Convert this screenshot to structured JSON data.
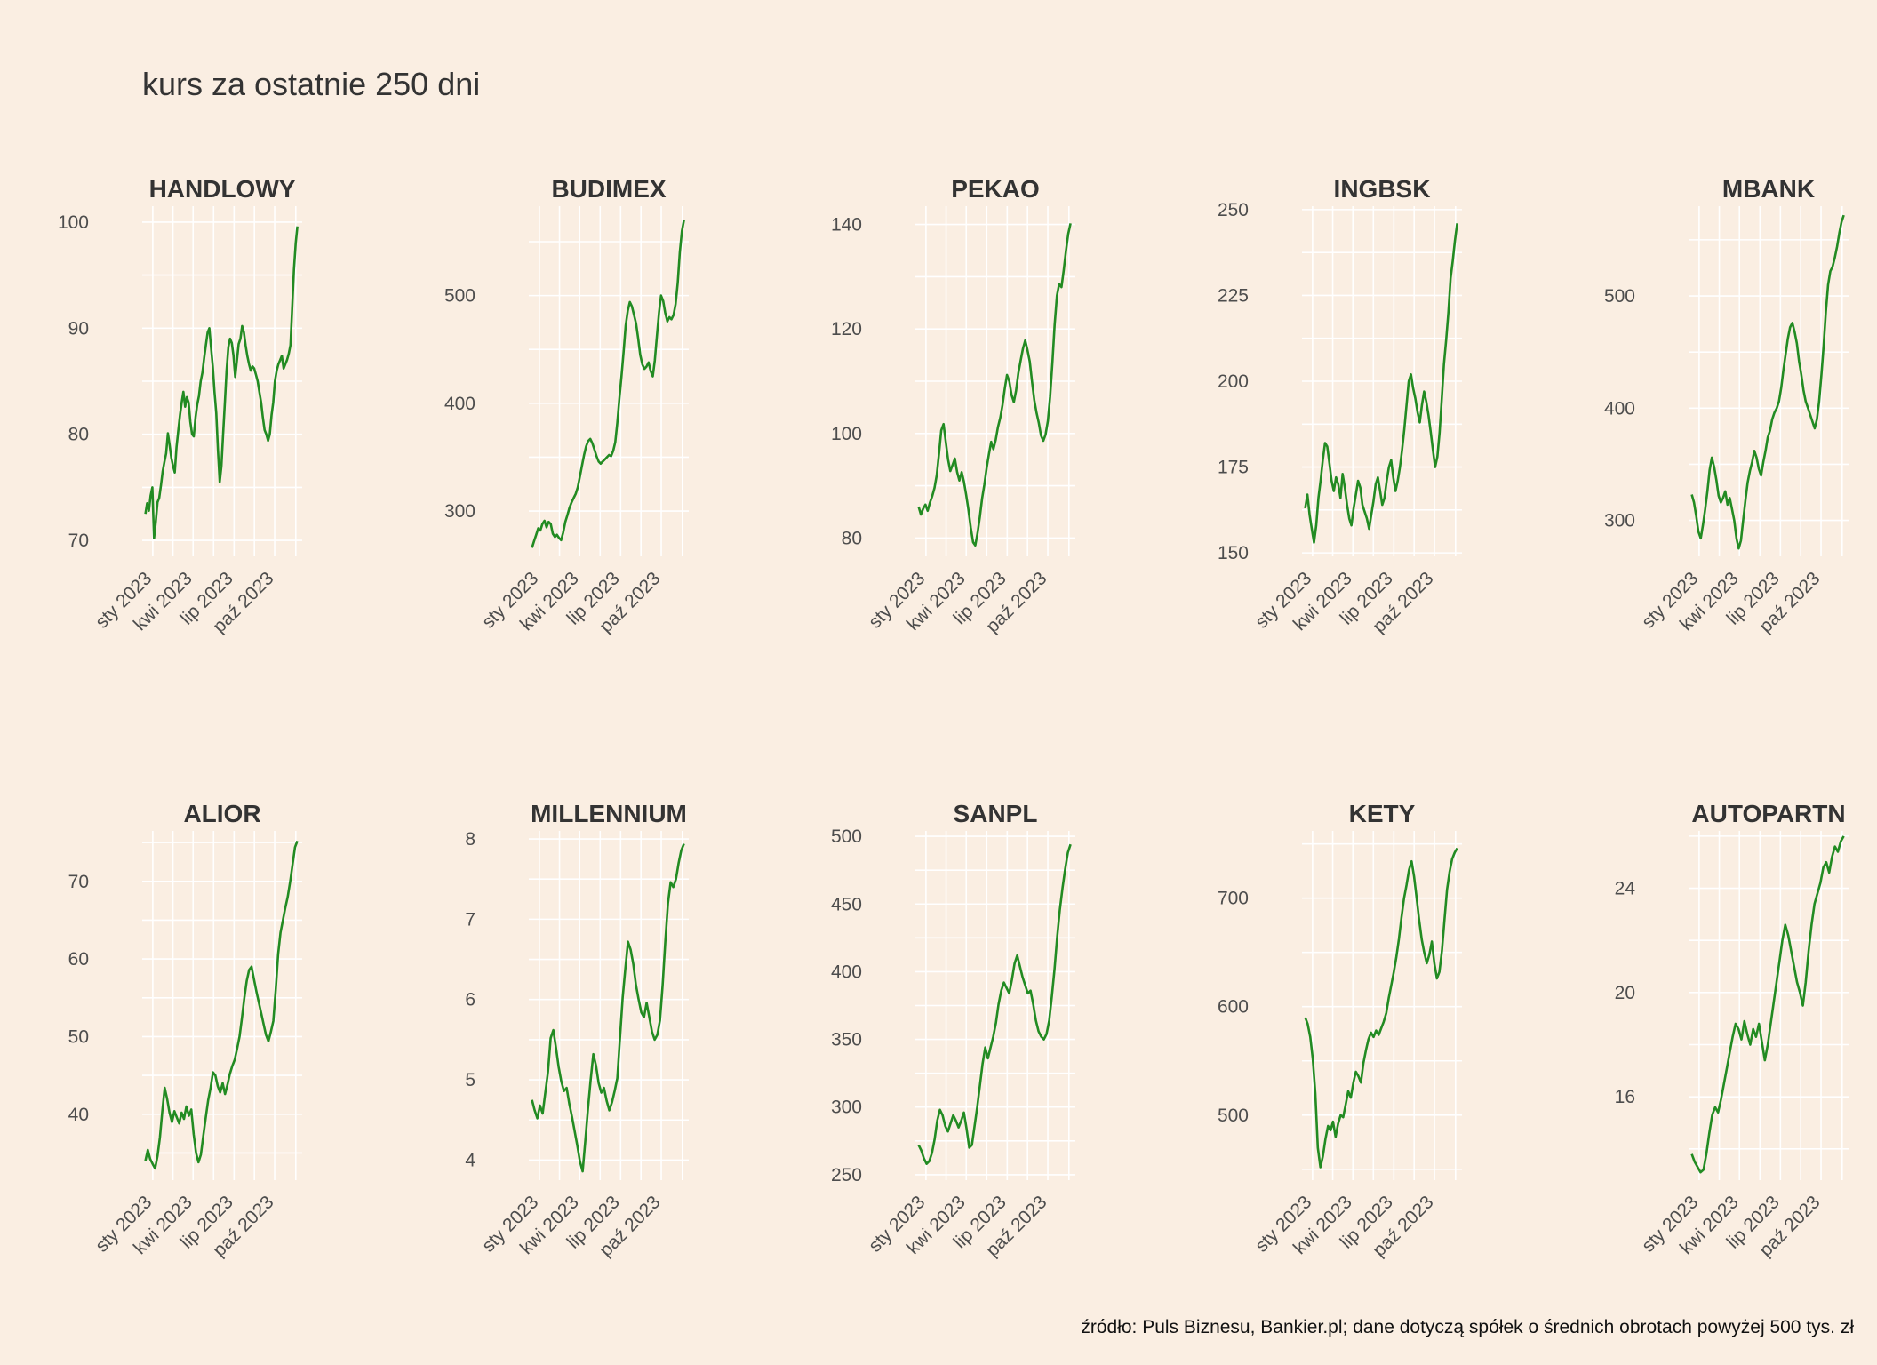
{
  "title": "kurs za ostatnie 250 dni",
  "caption": "źródło: Puls Biznesu, Bankier.pl; dane dotyczą spółek o średnich obrotach powyżej 500 tys. zł",
  "colors": {
    "background": "#faeee2",
    "line": "#228b22",
    "grid": "#ffffff",
    "text": "#333333"
  },
  "chart_data": [
    {
      "type": "line",
      "title": "HANDLOWY",
      "x_ticks": [
        "sty 2023",
        "kwi 2023",
        "lip 2023",
        "paź 2023"
      ],
      "y_ticks": [
        70,
        80,
        90,
        100
      ],
      "ylim": [
        68.5,
        101.5
      ],
      "series": [
        {
          "values": [
            72.5,
            73.5,
            72.8,
            74.2,
            75.0,
            70.2,
            71.8,
            73.6,
            74.0,
            75.2,
            76.5,
            77.4,
            78.2,
            80.1,
            79.0,
            77.8,
            77.0,
            76.4,
            78.8,
            80.3,
            81.8,
            83.0,
            84.0,
            82.6,
            83.5,
            83.0,
            81.2,
            80.0,
            79.8,
            81.6,
            82.8,
            83.6,
            85.0,
            85.8,
            87.2,
            88.4,
            89.6,
            90.0,
            88.2,
            86.4,
            84.0,
            82.0,
            78.5,
            75.5,
            77.0,
            80.0,
            83.0,
            86.0,
            88.2,
            89.0,
            88.6,
            87.4,
            85.4,
            87.0,
            88.5,
            89.0,
            90.2,
            89.6,
            88.4,
            87.4,
            86.6,
            86.0,
            86.4,
            86.2,
            85.6,
            85.0,
            84.0,
            83.0,
            81.6,
            80.4,
            80.0,
            79.4,
            80.0,
            81.8,
            83.0,
            85.0,
            86.0,
            86.6,
            87.0,
            87.4,
            86.2,
            86.6,
            87.0,
            87.6,
            88.4,
            92.0,
            95.5,
            98.0,
            99.6
          ]
        }
      ]
    },
    {
      "type": "line",
      "title": "BUDIMEX",
      "x_ticks": [
        "sty 2023",
        "kwi 2023",
        "lip 2023",
        "paź 2023"
      ],
      "y_ticks": [
        300,
        400,
        500
      ],
      "ylim": [
        258,
        583
      ],
      "series": [
        {
          "values": [
            266,
            272,
            278,
            284,
            282,
            288,
            291,
            285,
            290,
            288,
            279,
            276,
            278,
            275,
            273,
            280,
            290,
            296,
            303,
            308,
            312,
            316,
            322,
            332,
            342,
            352,
            360,
            365,
            367,
            363,
            357,
            351,
            346,
            344,
            346,
            348,
            350,
            352,
            351,
            356,
            364,
            382,
            405,
            425,
            448,
            472,
            486,
            494,
            490,
            482,
            474,
            460,
            445,
            436,
            432,
            434,
            438,
            430,
            425,
            440,
            462,
            484,
            500,
            495,
            484,
            476,
            480,
            478,
            482,
            492,
            512,
            540,
            560,
            570
          ]
        }
      ]
    },
    {
      "type": "line",
      "title": "PEKAO",
      "x_ticks": [
        "sty 2023",
        "kwi 2023",
        "lip 2023",
        "paź 2023"
      ],
      "y_ticks": [
        80,
        100,
        120,
        140
      ],
      "ylim": [
        76.5,
        143.5
      ],
      "series": [
        {
          "values": [
            86.0,
            84.5,
            85.6,
            86.4,
            85.2,
            86.8,
            88.0,
            89.6,
            92.0,
            96.2,
            100.6,
            101.8,
            98.4,
            95.0,
            92.8,
            94.0,
            95.2,
            92.6,
            91.0,
            92.6,
            90.8,
            88.2,
            85.4,
            82.0,
            79.2,
            78.6,
            81.0,
            84.0,
            87.6,
            90.2,
            93.4,
            96.0,
            98.4,
            97.0,
            98.8,
            101.2,
            103.0,
            105.4,
            108.6,
            111.2,
            110.0,
            107.4,
            106.0,
            108.2,
            111.6,
            114.0,
            116.2,
            117.8,
            116.0,
            113.8,
            110.0,
            106.4,
            104.0,
            102.0,
            99.6,
            98.6,
            99.8,
            102.4,
            107.0,
            113.6,
            120.8,
            126.4,
            128.6,
            128.0,
            131.2,
            135.0,
            138.2,
            140.2
          ]
        }
      ]
    },
    {
      "type": "line",
      "title": "INGBSK",
      "x_ticks": [
        "sty 2023",
        "kwi 2023",
        "lip 2023",
        "paź 2023"
      ],
      "y_ticks": [
        150,
        175,
        200,
        225,
        250
      ],
      "ylim": [
        149,
        251
      ],
      "series": [
        {
          "values": [
            163.0,
            167.0,
            161.0,
            157.0,
            153.0,
            158.0,
            166.0,
            171.0,
            177.0,
            182.0,
            181.0,
            176.0,
            171.0,
            168.0,
            172.0,
            170.0,
            166.0,
            173.0,
            169.0,
            164.0,
            160.0,
            158.0,
            163.0,
            167.0,
            171.0,
            169.0,
            164.0,
            162.0,
            160.0,
            157.0,
            161.0,
            165.0,
            170.0,
            172.0,
            168.0,
            164.0,
            166.0,
            171.0,
            175.0,
            177.0,
            172.0,
            168.0,
            171.0,
            175.0,
            180.0,
            186.0,
            193.0,
            200.0,
            202.0,
            198.0,
            195.0,
            191.0,
            188.0,
            193.0,
            197.0,
            194.0,
            190.0,
            185.0,
            180.0,
            175.0,
            178.0,
            185.0,
            195.0,
            205.0,
            212.0,
            220.0,
            230.0,
            235.0,
            241.0,
            246.0
          ]
        }
      ]
    },
    {
      "type": "line",
      "title": "MBANK",
      "x_ticks": [
        "sty 2023",
        "kwi 2023",
        "lip 2023",
        "paź 2023"
      ],
      "y_ticks": [
        300,
        400,
        500
      ],
      "ylim": [
        268,
        580
      ],
      "series": [
        {
          "values": [
            323,
            316,
            304,
            290,
            284,
            296,
            310,
            326,
            345,
            356,
            348,
            336,
            322,
            316,
            320,
            326,
            314,
            320,
            310,
            300,
            284,
            275,
            282,
            300,
            318,
            334,
            344,
            352,
            362,
            356,
            346,
            340,
            352,
            362,
            374,
            380,
            390,
            396,
            400,
            406,
            418,
            434,
            448,
            462,
            472,
            476,
            468,
            458,
            442,
            430,
            416,
            406,
            400,
            394,
            388,
            382,
            390,
            406,
            430,
            456,
            486,
            510,
            522,
            526,
            534,
            544,
            556,
            566,
            572
          ]
        }
      ]
    },
    {
      "type": "line",
      "title": "ALIOR",
      "x_ticks": [
        "sty 2023",
        "kwi 2023",
        "lip 2023",
        "paź 2023"
      ],
      "y_ticks": [
        40,
        50,
        60,
        70
      ],
      "ylim": [
        31.5,
        76.5
      ],
      "series": [
        {
          "values": [
            34.0,
            35.4,
            34.2,
            33.6,
            33.0,
            34.6,
            37.0,
            40.4,
            43.4,
            42.0,
            40.2,
            39.0,
            40.4,
            39.6,
            38.8,
            40.2,
            39.4,
            41.0,
            39.8,
            40.6,
            37.4,
            35.0,
            33.8,
            34.8,
            37.2,
            39.6,
            41.8,
            43.4,
            45.4,
            45.0,
            43.6,
            42.8,
            44.0,
            42.6,
            43.8,
            45.2,
            46.2,
            47.0,
            48.4,
            50.0,
            52.4,
            55.0,
            57.2,
            58.6,
            59.0,
            57.4,
            55.8,
            54.4,
            53.0,
            51.6,
            50.2,
            49.4,
            50.6,
            52.0,
            56.0,
            60.6,
            63.4,
            65.0,
            66.6,
            68.0,
            70.0,
            72.2,
            74.4,
            75.2
          ]
        }
      ]
    },
    {
      "type": "line",
      "title": "MILLENNIUM",
      "x_ticks": [
        "sty 2023",
        "kwi 2023",
        "lip 2023",
        "paź 2023"
      ],
      "y_ticks": [
        4,
        5,
        6,
        7,
        8
      ],
      "ylim": [
        3.75,
        8.1
      ],
      "series": [
        {
          "values": [
            4.75,
            4.62,
            4.52,
            4.68,
            4.58,
            4.84,
            5.1,
            5.52,
            5.62,
            5.4,
            5.16,
            4.98,
            4.86,
            4.9,
            4.7,
            4.54,
            4.36,
            4.18,
            3.98,
            3.86,
            4.24,
            4.64,
            5.0,
            5.32,
            5.18,
            4.96,
            4.84,
            4.9,
            4.74,
            4.62,
            4.72,
            4.86,
            5.02,
            5.52,
            6.02,
            6.38,
            6.72,
            6.62,
            6.44,
            6.18,
            6.0,
            5.84,
            5.78,
            5.96,
            5.78,
            5.6,
            5.5,
            5.56,
            5.74,
            6.18,
            6.72,
            7.2,
            7.46,
            7.4,
            7.5,
            7.7,
            7.86,
            7.94
          ]
        }
      ]
    },
    {
      "type": "line",
      "title": "SANPL",
      "x_ticks": [
        "sty 2023",
        "kwi 2023",
        "lip 2023",
        "paź 2023"
      ],
      "y_ticks": [
        250,
        300,
        350,
        400,
        450,
        500
      ],
      "ylim": [
        246,
        504
      ],
      "series": [
        {
          "values": [
            272,
            268,
            262,
            258,
            260,
            266,
            276,
            290,
            298,
            294,
            286,
            282,
            288,
            294,
            290,
            285,
            290,
            296,
            284,
            270,
            272,
            286,
            300,
            316,
            332,
            344,
            336,
            344,
            352,
            362,
            376,
            386,
            392,
            388,
            384,
            394,
            406,
            412,
            404,
            396,
            390,
            384,
            386,
            376,
            364,
            356,
            352,
            350,
            354,
            364,
            382,
            402,
            426,
            446,
            462,
            476,
            488,
            494
          ]
        }
      ]
    },
    {
      "type": "line",
      "title": "KETY",
      "x_ticks": [
        "sty 2023",
        "kwi 2023",
        "lip 2023",
        "paź 2023"
      ],
      "y_ticks": [
        500,
        600,
        700
      ],
      "ylim": [
        440,
        762
      ],
      "series": [
        {
          "values": [
            590,
            584,
            572,
            552,
            520,
            470,
            452,
            462,
            478,
            490,
            486,
            494,
            480,
            492,
            500,
            498,
            510,
            522,
            516,
            530,
            540,
            536,
            530,
            548,
            560,
            570,
            576,
            572,
            578,
            574,
            580,
            586,
            594,
            608,
            620,
            632,
            646,
            662,
            682,
            700,
            712,
            726,
            734,
            720,
            700,
            680,
            662,
            650,
            640,
            648,
            660,
            640,
            626,
            632,
            652,
            680,
            708,
            724,
            736,
            742,
            746
          ]
        }
      ]
    },
    {
      "type": "line",
      "title": "AUTOPARTN",
      "x_ticks": [
        "sty 2023",
        "kwi 2023",
        "lip 2023",
        "paź 2023"
      ],
      "y_ticks": [
        16,
        20,
        24
      ],
      "ylim": [
        12.8,
        26.2
      ],
      "series": [
        {
          "values": [
            13.8,
            13.5,
            13.3,
            13.1,
            13.2,
            13.8,
            14.6,
            15.3,
            15.6,
            15.4,
            15.9,
            16.5,
            17.1,
            17.7,
            18.3,
            18.8,
            18.6,
            18.2,
            18.9,
            18.4,
            18.0,
            18.6,
            18.3,
            18.8,
            18.1,
            17.4,
            18.0,
            18.8,
            19.6,
            20.4,
            21.2,
            22.0,
            22.6,
            22.2,
            21.6,
            21.0,
            20.4,
            20.0,
            19.5,
            20.4,
            21.6,
            22.6,
            23.4,
            23.8,
            24.2,
            24.8,
            25.0,
            24.6,
            25.2,
            25.6,
            25.4,
            25.8,
            26.0
          ]
        }
      ]
    }
  ]
}
